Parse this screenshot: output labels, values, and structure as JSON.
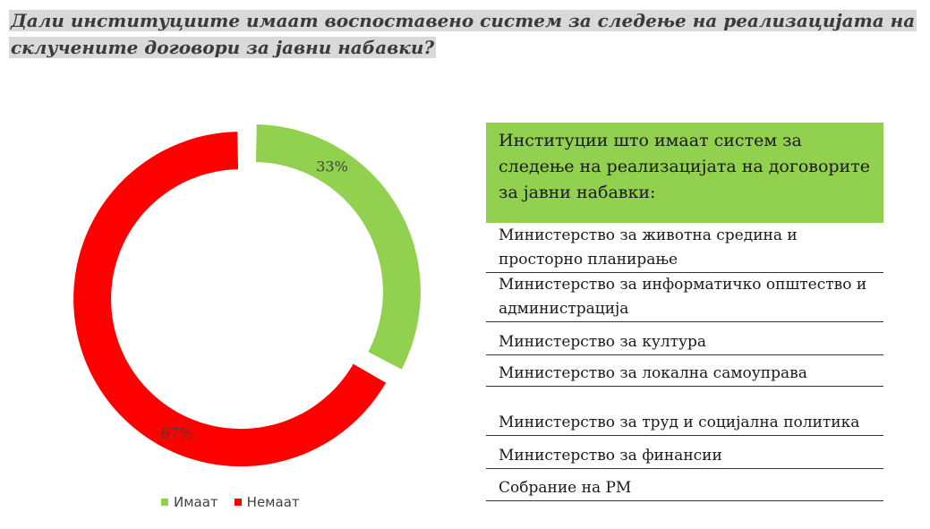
{
  "title": "Дали институциите имаат воспоставено систем за следење на реализацијата на склучените договори за јавни набавки?",
  "chart_data": {
    "type": "pie",
    "donut": true,
    "slices": [
      {
        "label": "Имаат",
        "value": 33,
        "value_label": "33%",
        "color": "#92d050"
      },
      {
        "label": "Немаат",
        "value": 67,
        "value_label": "67%",
        "color": "#ff0000"
      }
    ],
    "legend_position": "bottom"
  },
  "institutions": {
    "header": "Институции што имаат систем за следење на реализацијата на договорите за јавни набавки:",
    "header_color": "#92d050",
    "items": [
      "Министерство за животна средина и просторно планирање",
      "Министерство за информатичко општество и администрација",
      "Министерство за култура",
      "Министерство за локална самоуправа",
      "Министерство за труд и социјална политика",
      "Министерство за финансии",
      "Собрание на РМ"
    ]
  }
}
